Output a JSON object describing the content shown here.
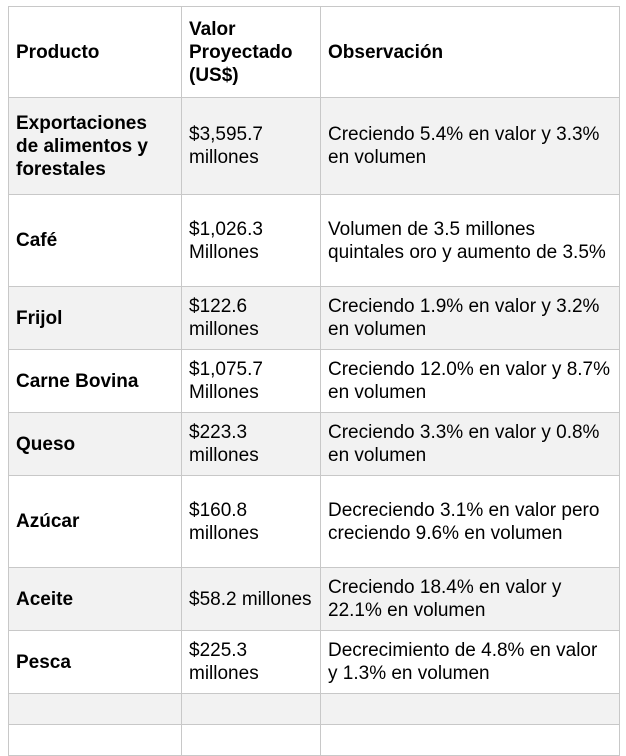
{
  "table": {
    "headers": [
      "Producto",
      "Valor Proyectado (US$)",
      "Observación"
    ],
    "rows": [
      {
        "producto": "Exportaciones de alimentos y forestales",
        "valor": "$3,595.7 millones",
        "observacion": "Creciendo 5.4% en valor y 3.3% en volumen"
      },
      {
        "producto": "Café",
        "valor": "$1,026.3 Millones",
        "observacion": "Volumen de 3.5 millones quintales oro y aumento de 3.5%"
      },
      {
        "producto": "Frijol",
        "valor": "$122.6 millones",
        "observacion": "Creciendo 1.9% en valor y 3.2% en volumen"
      },
      {
        "producto": "Carne Bovina",
        "valor": "$1,075.7 Millones",
        "observacion": "Creciendo 12.0% en valor y 8.7% en volumen"
      },
      {
        "producto": "Queso",
        "valor": "$223.3 millones",
        "observacion": "Creciendo 3.3% en valor y 0.8% en volumen"
      },
      {
        "producto": "Azúcar",
        "valor": "$160.8 millones",
        "observacion": "Decreciendo 3.1% en valor pero creciendo 9.6% en volumen"
      },
      {
        "producto": "Aceite",
        "valor": "$58.2 millones",
        "observacion": "Creciendo 18.4% en valor y 22.1% en volumen"
      },
      {
        "producto": "Pesca",
        "valor": "$225.3 millones",
        "observacion": "Decrecimiento de 4.8% en valor y 1.3% en volumen"
      }
    ]
  },
  "colors": {
    "shaded_row": "#f2f2f2",
    "border": "#c8c8c8"
  }
}
